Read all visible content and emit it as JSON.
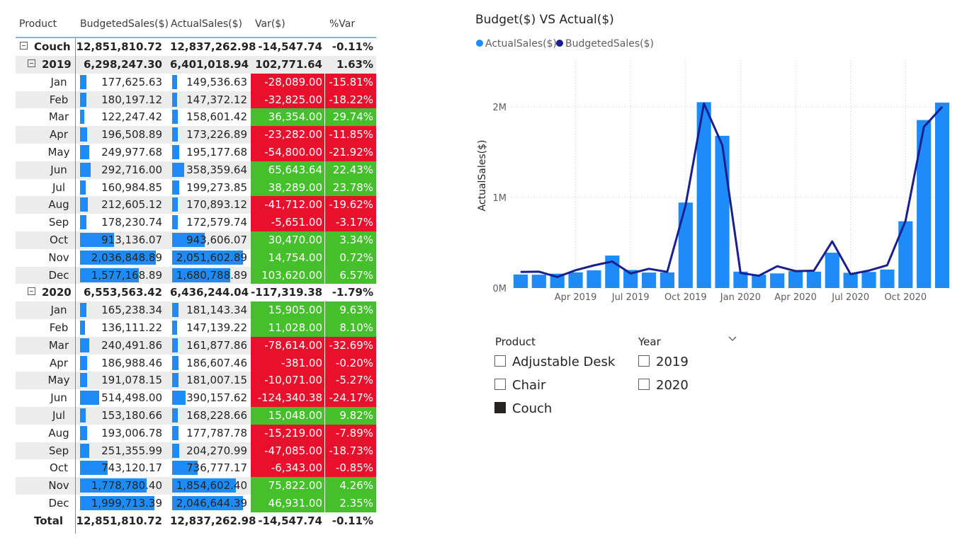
{
  "table": {
    "columns": [
      "Product",
      "BudgetedSales($)",
      "ActualSales($)",
      "Var($)",
      "%Var"
    ],
    "product": {
      "name": "Couch",
      "budgeted": "12,851,810.72",
      "actual": "12,837,262.98",
      "var": "-14,547.74",
      "pct": "-0.11%"
    },
    "years": [
      {
        "label": "2019",
        "budgeted": "6,298,247.30",
        "actual": "6,401,018.94",
        "var": "102,771.64",
        "pct": "1.63%",
        "months": [
          {
            "m": "Jan",
            "b": "177,625.63",
            "a": "149,536.63",
            "v": "-28,089.00",
            "p": "-15.81%",
            "bv": 177625.63,
            "av": 149536.63,
            "s": "neg"
          },
          {
            "m": "Feb",
            "b": "180,197.12",
            "a": "147,372.12",
            "v": "-32,825.00",
            "p": "-18.22%",
            "bv": 180197.12,
            "av": 147372.12,
            "s": "neg"
          },
          {
            "m": "Mar",
            "b": "122,247.42",
            "a": "158,601.42",
            "v": "36,354.00",
            "p": "29.74%",
            "bv": 122247.42,
            "av": 158601.42,
            "s": "pos"
          },
          {
            "m": "Apr",
            "b": "196,508.89",
            "a": "173,226.89",
            "v": "-23,282.00",
            "p": "-11.85%",
            "bv": 196508.89,
            "av": 173226.89,
            "s": "neg"
          },
          {
            "m": "May",
            "b": "249,977.68",
            "a": "195,177.68",
            "v": "-54,800.00",
            "p": "-21.92%",
            "bv": 249977.68,
            "av": 195177.68,
            "s": "neg"
          },
          {
            "m": "Jun",
            "b": "292,716.00",
            "a": "358,359.64",
            "v": "65,643.64",
            "p": "22.43%",
            "bv": 292716.0,
            "av": 358359.64,
            "s": "pos"
          },
          {
            "m": "Jul",
            "b": "160,984.85",
            "a": "199,273.85",
            "v": "38,289.00",
            "p": "23.78%",
            "bv": 160984.85,
            "av": 199273.85,
            "s": "pos"
          },
          {
            "m": "Aug",
            "b": "212,605.12",
            "a": "170,893.12",
            "v": "-41,712.00",
            "p": "-19.62%",
            "bv": 212605.12,
            "av": 170893.12,
            "s": "neg"
          },
          {
            "m": "Sep",
            "b": "178,230.74",
            "a": "172,579.74",
            "v": "-5,651.00",
            "p": "-3.17%",
            "bv": 178230.74,
            "av": 172579.74,
            "s": "neg"
          },
          {
            "m": "Oct",
            "b": "913,136.07",
            "a": "943,606.07",
            "v": "30,470.00",
            "p": "3.34%",
            "bv": 913136.07,
            "av": 943606.07,
            "s": "pos"
          },
          {
            "m": "Nov",
            "b": "2,036,848.89",
            "a": "2,051,602.89",
            "v": "14,754.00",
            "p": "0.72%",
            "bv": 2036848.89,
            "av": 2051602.89,
            "s": "pos"
          },
          {
            "m": "Dec",
            "b": "1,577,168.89",
            "a": "1,680,788.89",
            "v": "103,620.00",
            "p": "6.57%",
            "bv": 1577168.89,
            "av": 1680788.89,
            "s": "pos"
          }
        ]
      },
      {
        "label": "2020",
        "budgeted": "6,553,563.42",
        "actual": "6,436,244.04",
        "var": "-117,319.38",
        "pct": "-1.79%",
        "months": [
          {
            "m": "Jan",
            "b": "165,238.34",
            "a": "181,143.34",
            "v": "15,905.00",
            "p": "9.63%",
            "bv": 165238.34,
            "av": 181143.34,
            "s": "pos"
          },
          {
            "m": "Feb",
            "b": "136,111.22",
            "a": "147,139.22",
            "v": "11,028.00",
            "p": "8.10%",
            "bv": 136111.22,
            "av": 147139.22,
            "s": "pos"
          },
          {
            "m": "Mar",
            "b": "240,491.86",
            "a": "161,877.86",
            "v": "-78,614.00",
            "p": "-32.69%",
            "bv": 240491.86,
            "av": 161877.86,
            "s": "neg"
          },
          {
            "m": "Apr",
            "b": "186,988.46",
            "a": "186,607.46",
            "v": "-381.00",
            "p": "-0.20%",
            "bv": 186988.46,
            "av": 186607.46,
            "s": "neg"
          },
          {
            "m": "May",
            "b": "191,078.15",
            "a": "181,007.15",
            "v": "-10,071.00",
            "p": "-5.27%",
            "bv": 191078.15,
            "av": 181007.15,
            "s": "neg"
          },
          {
            "m": "Jun",
            "b": "514,498.00",
            "a": "390,157.62",
            "v": "-124,340.38",
            "p": "-24.17%",
            "bv": 514498.0,
            "av": 390157.62,
            "s": "neg"
          },
          {
            "m": "Jul",
            "b": "153,180.66",
            "a": "168,228.66",
            "v": "15,048.00",
            "p": "9.82%",
            "bv": 153180.66,
            "av": 168228.66,
            "s": "pos"
          },
          {
            "m": "Aug",
            "b": "193,006.78",
            "a": "177,787.78",
            "v": "-15,219.00",
            "p": "-7.89%",
            "bv": 193006.78,
            "av": 177787.78,
            "s": "neg"
          },
          {
            "m": "Sep",
            "b": "251,355.99",
            "a": "204,270.99",
            "v": "-47,085.00",
            "p": "-18.73%",
            "bv": 251355.99,
            "av": 204270.99,
            "s": "neg"
          },
          {
            "m": "Oct",
            "b": "743,120.17",
            "a": "736,777.17",
            "v": "-6,343.00",
            "p": "-0.85%",
            "bv": 743120.17,
            "av": 736777.17,
            "s": "neg"
          },
          {
            "m": "Nov",
            "b": "1,778,780.40",
            "a": "1,854,602.40",
            "v": "75,822.00",
            "p": "4.26%",
            "bv": 1778780.4,
            "av": 1854602.4,
            "s": "pos"
          },
          {
            "m": "Dec",
            "b": "1,999,713.39",
            "a": "2,046,644.39",
            "v": "46,931.00",
            "p": "2.35%",
            "bv": 1999713.39,
            "av": 2046644.39,
            "s": "pos"
          }
        ]
      }
    ],
    "total": {
      "label": "Total",
      "budgeted": "12,851,810.72",
      "actual": "12,837,262.98",
      "var": "-14,547.74",
      "pct": "-0.11%"
    },
    "bar_max": 2051602.89
  },
  "chart": {
    "title": "Budget($) VS Actual($)",
    "legend": [
      "ActualSales($)",
      "BudgetedSales($)"
    ],
    "colors": {
      "actual": "#1d8cf8",
      "budgeted": "#1a1f8f",
      "neg": "#e8112d",
      "pos": "#45bf2c"
    }
  },
  "chart_data": {
    "type": "bar",
    "title": "Budget($) VS Actual($)",
    "xlabel": "",
    "ylabel": "ActualSales($)",
    "ylim": [
      0,
      2000000
    ],
    "yticks": [
      "0M",
      "1M",
      "2M"
    ],
    "xtick_labels": [
      "Apr 2019",
      "Jul 2019",
      "Oct 2019",
      "Jan 2020",
      "Apr 2020",
      "Jul 2020",
      "Oct 2020"
    ],
    "categories": [
      "2019-01",
      "2019-02",
      "2019-03",
      "2019-04",
      "2019-05",
      "2019-06",
      "2019-07",
      "2019-08",
      "2019-09",
      "2019-10",
      "2019-11",
      "2019-12",
      "2020-01",
      "2020-02",
      "2020-03",
      "2020-04",
      "2020-05",
      "2020-06",
      "2020-07",
      "2020-08",
      "2020-09",
      "2020-10",
      "2020-11",
      "2020-12"
    ],
    "series": [
      {
        "name": "ActualSales($)",
        "kind": "bar",
        "values": [
          149536.63,
          147372.12,
          158601.42,
          173226.89,
          195177.68,
          358359.64,
          199273.85,
          170893.12,
          172579.74,
          943606.07,
          2051602.89,
          1680788.89,
          181143.34,
          147139.22,
          161877.86,
          186607.46,
          181007.15,
          390157.62,
          168228.66,
          177787.78,
          204270.99,
          736777.17,
          1854602.4,
          2046644.39
        ]
      },
      {
        "name": "BudgetedSales($)",
        "kind": "line",
        "values": [
          177625.63,
          180197.12,
          122247.42,
          196508.89,
          249977.68,
          292716.0,
          160984.85,
          212605.12,
          178230.74,
          913136.07,
          2036848.89,
          1577168.89,
          165238.34,
          136111.22,
          240491.86,
          186988.46,
          191078.15,
          514498.0,
          153180.66,
          193006.78,
          251355.99,
          743120.17,
          1778780.4,
          1999713.39
        ]
      }
    ],
    "grid": true,
    "legend_position": "top-left"
  },
  "slicers": {
    "product": {
      "title": "Product",
      "options": [
        {
          "label": "Adjustable Desk",
          "checked": false
        },
        {
          "label": "Chair",
          "checked": false
        },
        {
          "label": "Couch",
          "checked": true
        }
      ]
    },
    "year": {
      "title": "Year",
      "options": [
        {
          "label": "2019",
          "checked": false
        },
        {
          "label": "2020",
          "checked": false
        }
      ]
    }
  }
}
